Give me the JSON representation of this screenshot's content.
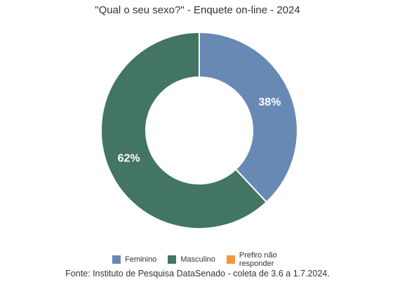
{
  "chart_data": {
    "type": "pie",
    "variant": "donut",
    "title": "\"Qual o seu sexo?\" - Enquete on-line - 2024",
    "categories": [
      "Feminino",
      "Masculino",
      "Prefiro não responder"
    ],
    "values": [
      38,
      62,
      0
    ],
    "data_labels": [
      "38%",
      "62%",
      ""
    ],
    "colors": [
      "#6789b4",
      "#427562",
      "#f7953b"
    ],
    "legend_position": "bottom",
    "source": "Fonte: Instituto de Pesquisa DataSenado - coleta de 3.6 a 1.7.2024."
  }
}
